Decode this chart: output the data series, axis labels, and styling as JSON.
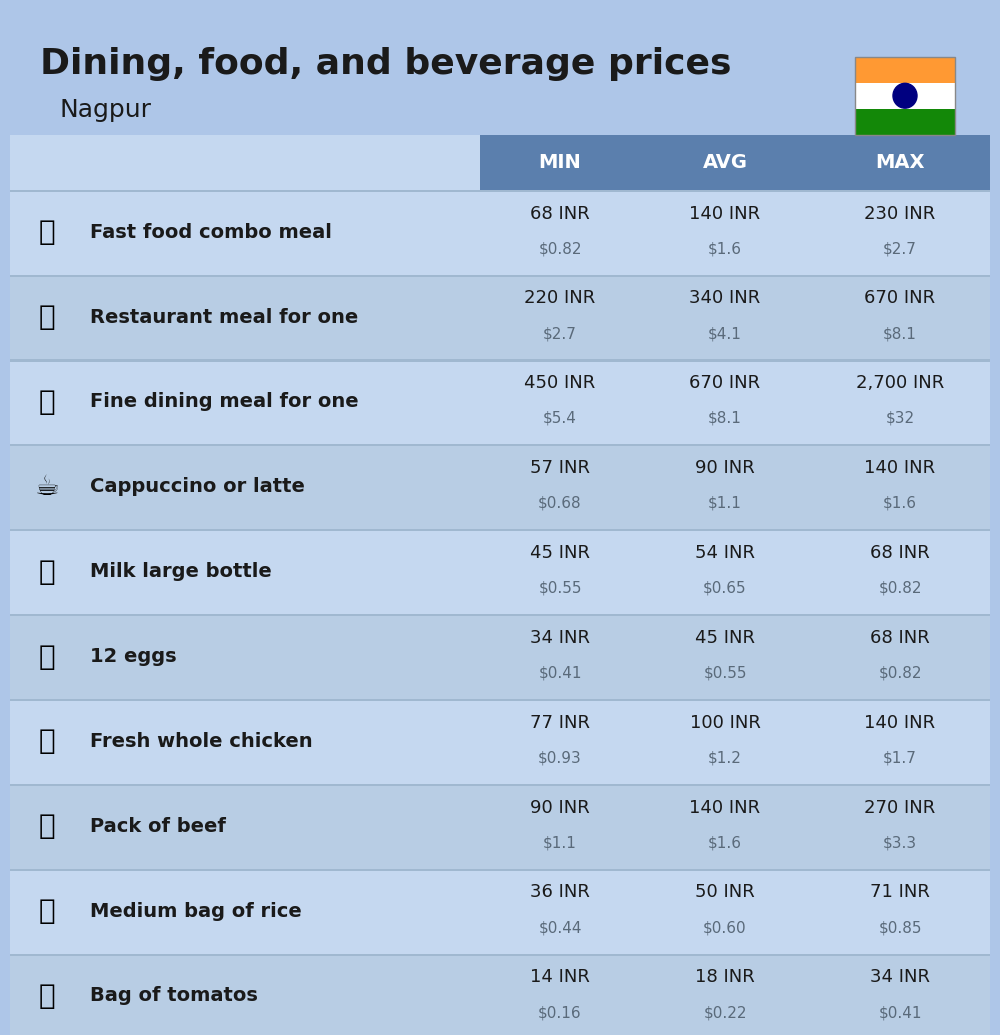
{
  "title": "Dining, food, and beverage prices",
  "subtitle": "Nagpur",
  "bg_color": "#aec6e8",
  "header_color": "#5b7fad",
  "header_text_color": "#ffffff",
  "row_color_light": "#c5d8f0",
  "row_color_dark": "#b8cde4",
  "col_headers": [
    "MIN",
    "AVG",
    "MAX"
  ],
  "rows": [
    {
      "label": "Fast food combo meal",
      "emoji": "🍔",
      "min_inr": "68 INR",
      "min_usd": "$0.82",
      "avg_inr": "140 INR",
      "avg_usd": "$1.6",
      "max_inr": "230 INR",
      "max_usd": "$2.7"
    },
    {
      "label": "Restaurant meal for one",
      "emoji": "🍳",
      "min_inr": "220 INR",
      "min_usd": "$2.7",
      "avg_inr": "340 INR",
      "avg_usd": "$4.1",
      "max_inr": "670 INR",
      "max_usd": "$8.1"
    },
    {
      "label": "Fine dining meal for one",
      "emoji": "🍽",
      "min_inr": "450 INR",
      "min_usd": "$5.4",
      "avg_inr": "670 INR",
      "avg_usd": "$8.1",
      "max_inr": "2,700 INR",
      "max_usd": "$32"
    },
    {
      "label": "Cappuccino or latte",
      "emoji": "☕",
      "min_inr": "57 INR",
      "min_usd": "$0.68",
      "avg_inr": "90 INR",
      "avg_usd": "$1.1",
      "max_inr": "140 INR",
      "max_usd": "$1.6"
    },
    {
      "label": "Milk large bottle",
      "emoji": "🥛",
      "min_inr": "45 INR",
      "min_usd": "$0.55",
      "avg_inr": "54 INR",
      "avg_usd": "$0.65",
      "max_inr": "68 INR",
      "max_usd": "$0.82"
    },
    {
      "label": "12 eggs",
      "emoji": "🥚",
      "min_inr": "34 INR",
      "min_usd": "$0.41",
      "avg_inr": "45 INR",
      "avg_usd": "$0.55",
      "max_inr": "68 INR",
      "max_usd": "$0.82"
    },
    {
      "label": "Fresh whole chicken",
      "emoji": "🐔",
      "min_inr": "77 INR",
      "min_usd": "$0.93",
      "avg_inr": "100 INR",
      "avg_usd": "$1.2",
      "max_inr": "140 INR",
      "max_usd": "$1.7"
    },
    {
      "label": "Pack of beef",
      "emoji": "🥩",
      "min_inr": "90 INR",
      "min_usd": "$1.1",
      "avg_inr": "140 INR",
      "avg_usd": "$1.6",
      "max_inr": "270 INR",
      "max_usd": "$3.3"
    },
    {
      "label": "Medium bag of rice",
      "emoji": "🍚",
      "min_inr": "36 INR",
      "min_usd": "$0.44",
      "avg_inr": "50 INR",
      "avg_usd": "$0.60",
      "max_inr": "71 INR",
      "max_usd": "$0.85"
    },
    {
      "label": "Bag of tomatos",
      "emoji": "🍅",
      "min_inr": "14 INR",
      "min_usd": "$0.16",
      "avg_inr": "18 INR",
      "avg_usd": "$0.22",
      "max_inr": "34 INR",
      "max_usd": "$0.41"
    }
  ],
  "icon_emojis": [
    "🍔",
    "🍳",
    "🍽️",
    "☕",
    "🥛",
    "🥚",
    "🐔",
    "🥩",
    "🍚",
    "🍅"
  ]
}
